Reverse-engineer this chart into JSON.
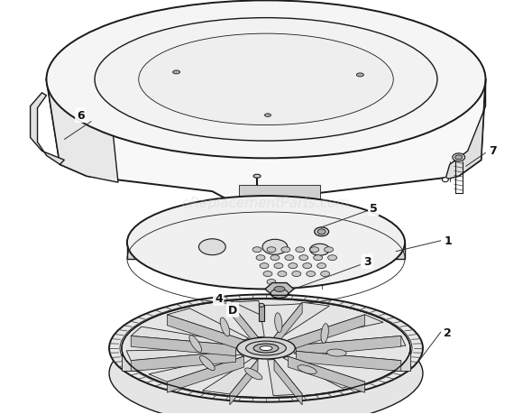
{
  "bg_color": "#ffffff",
  "line_color": "#1a1a1a",
  "watermark_text": "eReplacementParts.com",
  "watermark_fontsize": 11,
  "watermark_alpha": 0.35,
  "fig_width": 5.9,
  "fig_height": 4.6,
  "dpi": 100
}
